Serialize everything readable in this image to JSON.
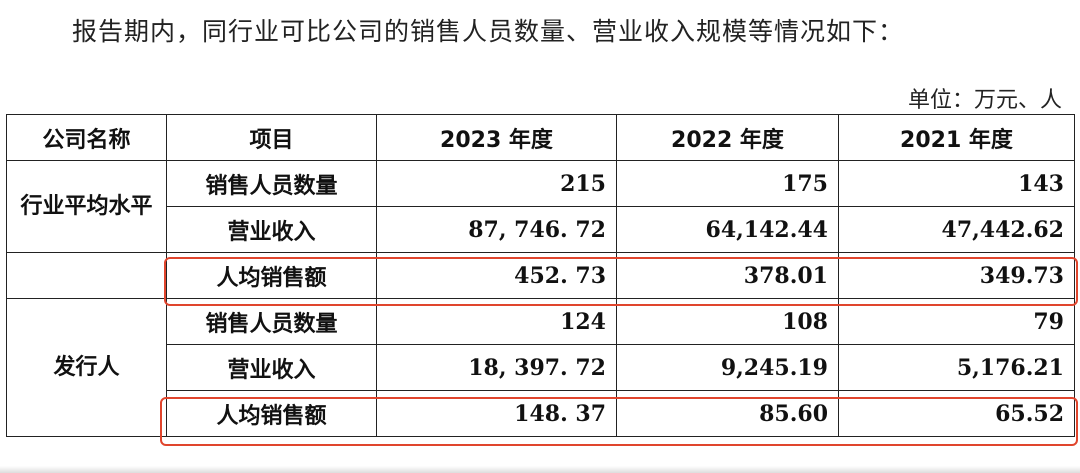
{
  "intro": "报告期内，同行业可比公司的销售人员数量、营业收入规模等情况如下：",
  "unit": "单位：万元、人",
  "colors": {
    "highlight": "#e0452d"
  },
  "table": {
    "headers": [
      "公司名称",
      "项目",
      "2023 年度",
      "2022 年度",
      "2021 年度"
    ],
    "groups": [
      {
        "company": "行业平均水平",
        "rows": [
          {
            "item": "销售人员数量",
            "values": [
              "215",
              "175",
              "143"
            ]
          },
          {
            "item": "营业收入",
            "values": [
              "87, 746. 72",
              "64,142.44",
              "47,442.62"
            ]
          },
          {
            "item": "人均销售额",
            "values": [
              "452. 73",
              "378.01",
              "349.73"
            ],
            "highlighted": true
          }
        ]
      },
      {
        "company": "发行人",
        "rows": [
          {
            "item": "销售人员数量",
            "values": [
              "124",
              "108",
              "79"
            ]
          },
          {
            "item": "营业收入",
            "values": [
              "18, 397. 72",
              "9,245.19",
              "5,176.21"
            ]
          },
          {
            "item": "人均销售额",
            "values": [
              "148. 37",
              "85.60",
              "65.52"
            ],
            "highlighted": true
          }
        ]
      }
    ]
  }
}
